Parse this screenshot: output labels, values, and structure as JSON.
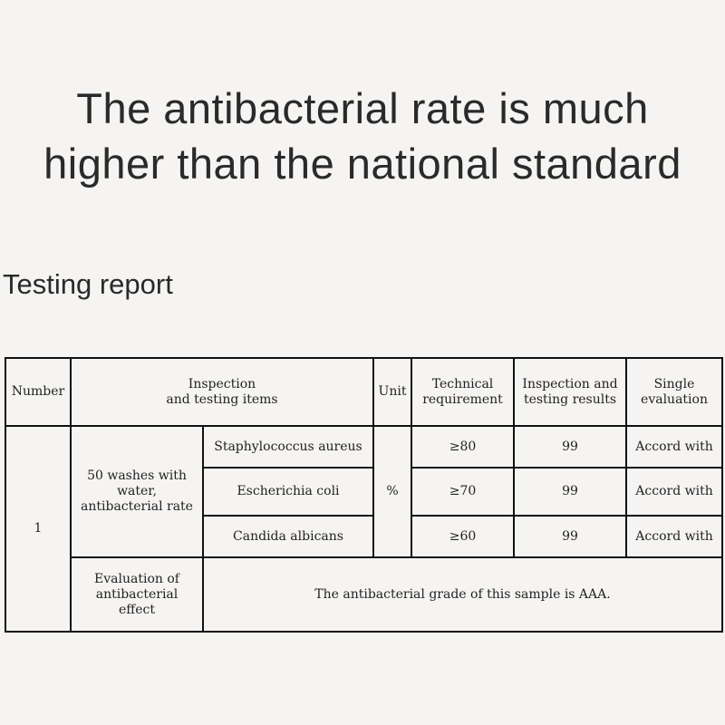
{
  "heading": {
    "line1": "The antibacterial rate is much",
    "line2": "higher than the national standard"
  },
  "subtitle": "Testing report",
  "table": {
    "headers": {
      "number": "Number",
      "items": "Inspection\nand testing items",
      "unit": "Unit",
      "requirement": "Technical\nrequirement",
      "results": "Inspection and\ntesting results",
      "evaluation": "Single\nevaluation"
    },
    "number": "1",
    "group": "50 washes with\nwater,\nantibacterial rate",
    "unit": "%",
    "rows": [
      {
        "item": "Staphylococcus aureus",
        "requirement": "≥80",
        "result": "99",
        "evaluation": "Accord with"
      },
      {
        "item": "Escherichia coli",
        "requirement": "≥70",
        "result": "99",
        "evaluation": "Accord with"
      },
      {
        "item": "Candida albicans",
        "requirement": "≥60",
        "result": "99",
        "evaluation": "Accord with"
      }
    ],
    "effect_label": "Evaluation of\nantibacterial\neffect",
    "effect_text": "The antibacterial grade of this sample is AAA."
  }
}
